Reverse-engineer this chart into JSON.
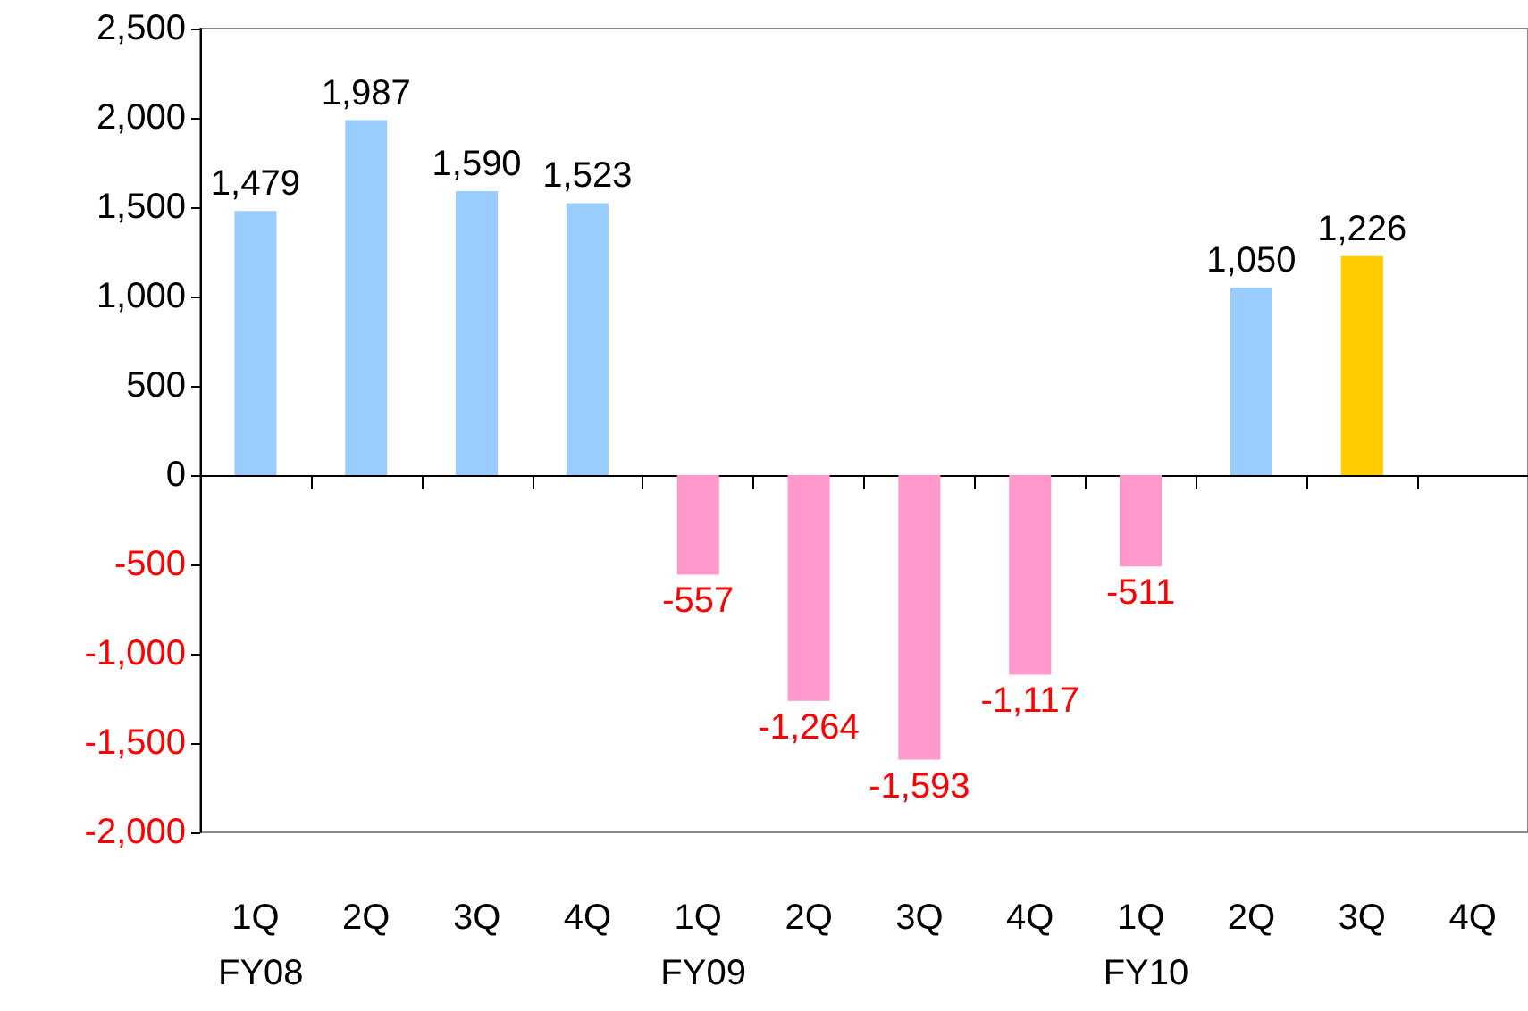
{
  "chart_data": {
    "type": "bar",
    "categories": [
      "1Q",
      "2Q",
      "3Q",
      "4Q",
      "1Q",
      "2Q",
      "3Q",
      "4Q",
      "1Q",
      "2Q",
      "3Q",
      "4Q"
    ],
    "values": [
      1479,
      1987,
      1590,
      1523,
      -557,
      -1264,
      -1593,
      -1117,
      -511,
      1050,
      1226,
      null
    ],
    "colors": [
      "#99ccff",
      "#99ccff",
      "#99ccff",
      "#99ccff",
      "#ff99cc",
      "#ff99cc",
      "#ff99cc",
      "#ff99cc",
      "#ff99cc",
      "#99ccff",
      "#ffcc00",
      "#99ccff"
    ],
    "value_labels": [
      "1,479",
      "1,987",
      "1,590",
      "1,523",
      "-557",
      "-1,264",
      "-1,593",
      "-1,117",
      "-511",
      "1,050",
      "1,226",
      null
    ],
    "annotations": [
      "FY08",
      "FY09",
      "FY10"
    ],
    "ylim": [
      -2000,
      2500
    ],
    "yticks": [
      {
        "value": -2000,
        "label": "-2,000"
      },
      {
        "value": -1500,
        "label": "-1,500"
      },
      {
        "value": -1000,
        "label": "-1,000"
      },
      {
        "value": -500,
        "label": "-500"
      },
      0,
      500,
      {
        "value": 1000,
        "label": "1,000"
      },
      {
        "value": 1500,
        "label": "1,500"
      },
      {
        "value": 2000,
        "label": "2,000"
      },
      {
        "value": 2500,
        "label": "2,500"
      }
    ],
    "relative": false
  }
}
